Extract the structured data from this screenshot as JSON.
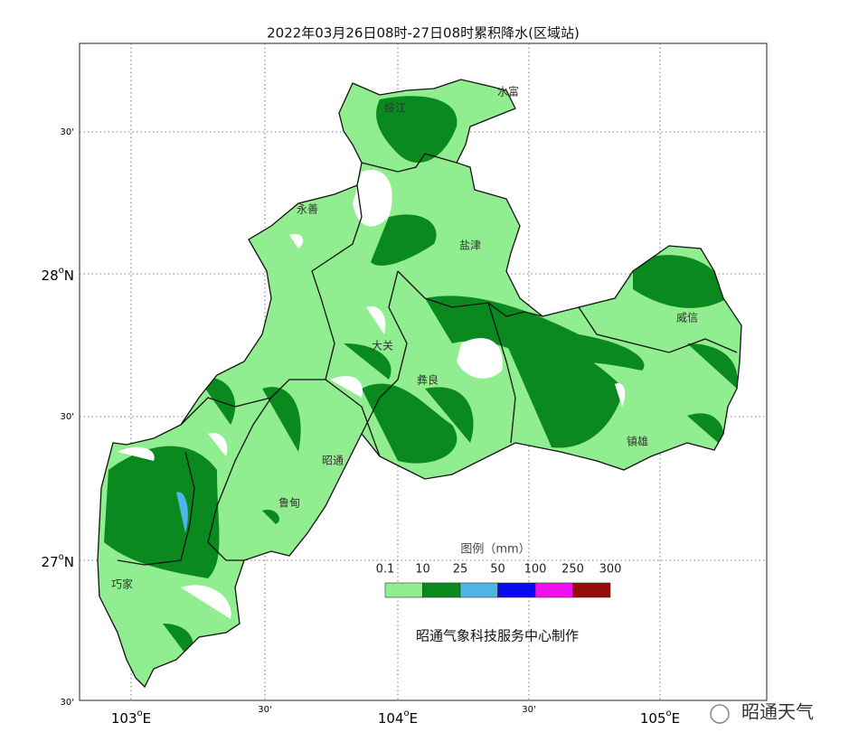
{
  "title": "2022年03月26日08时-27日08时累积降水(区域站)",
  "lon_labels": [
    {
      "deg": "103",
      "sup": "o",
      "hemi": "E"
    },
    "30'",
    {
      "deg": "104",
      "sup": "o",
      "hemi": "E"
    },
    "30'",
    {
      "deg": "105",
      "sup": "o",
      "hemi": "E"
    }
  ],
  "lat_labels": [
    "30'",
    {
      "deg": "28",
      "sup": "o",
      "hemi": "N"
    },
    "30'",
    {
      "deg": "27",
      "sup": "o",
      "hemi": "N"
    },
    "30'"
  ],
  "places": [
    "水富",
    "绥江",
    "永善",
    "盐津",
    "威信",
    "大关",
    "彝良",
    "镇雄",
    "昭通",
    "鲁甸",
    "巧家"
  ],
  "legend": {
    "title": "图例（mm）",
    "labels": [
      "0.1",
      "10",
      "25",
      "50",
      "100",
      "250",
      "300"
    ],
    "colors": [
      "#90ee90",
      "#0a8a1e",
      "#4fb4e8",
      "#0a0aee",
      "#ee10ee",
      "#960a0a"
    ]
  },
  "credit": "昭通气象科技服务中心制作",
  "watermark": "昭通天气"
}
